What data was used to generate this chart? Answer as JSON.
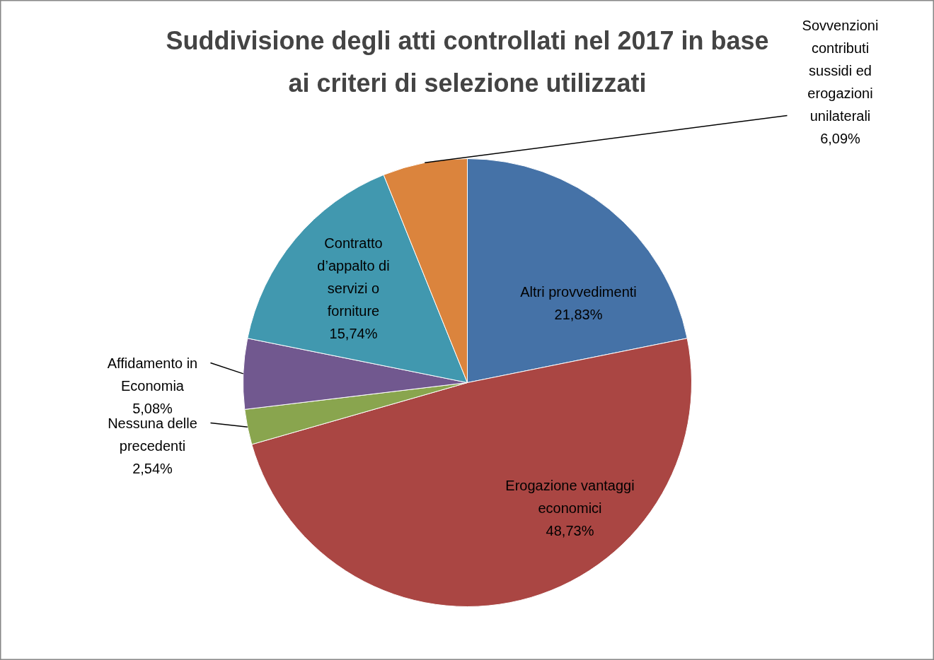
{
  "chart_data": {
    "type": "pie",
    "title": "Suddivisione degli atti controllati nel 2017 in base\nai criteri di selezione utilizzati",
    "categories": [
      "Altri provvedimenti",
      "Erogazione vantaggi\neconomici",
      "Nessuna delle\nprecedenti",
      "Affidamento in\nEconomia",
      "Contratto\nd’appalto di\nservizi o\nforniture",
      "Sovvenzioni\ncontributi\nsussidi ed\nerogazioni\nunilaterali"
    ],
    "values": [
      21.83,
      48.73,
      2.54,
      5.08,
      15.74,
      6.09
    ],
    "value_labels": [
      "21,83%",
      "48,73%",
      "2,54%",
      "5,08%",
      "15,74%",
      "6,09%"
    ],
    "colors": [
      "#4572a7",
      "#aa4643",
      "#89a54e",
      "#71588f",
      "#4198af",
      "#db843d"
    ]
  }
}
